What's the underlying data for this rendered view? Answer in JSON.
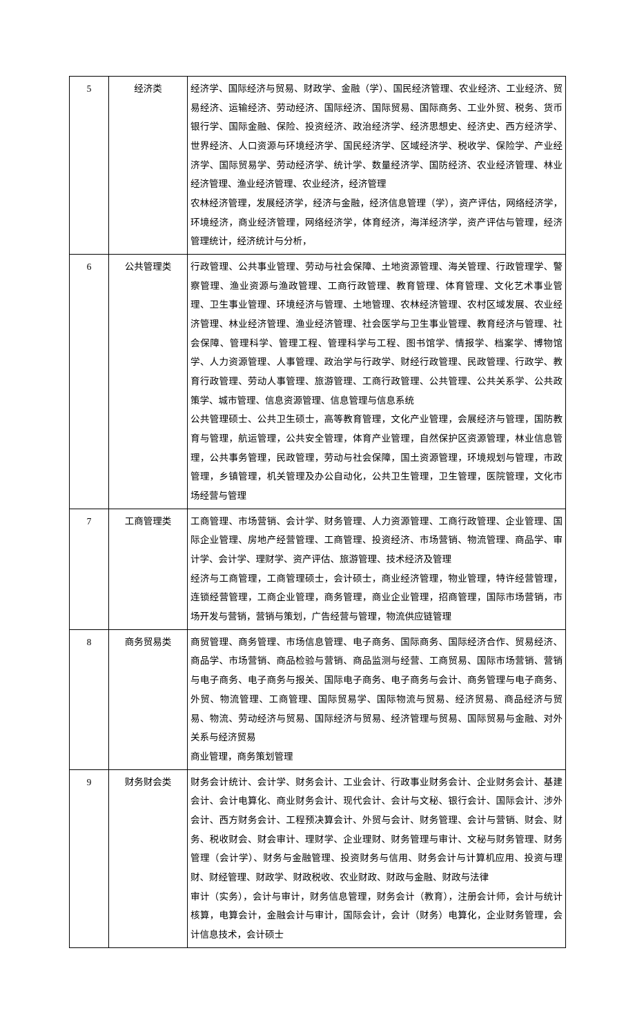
{
  "table": {
    "rows": [
      {
        "num": "5",
        "category": "经济类",
        "description": "经济学、国际经济与贸易、财政学、金融（学）、国民经济管理、农业经济、工业经济、贸易经济、运输经济、劳动经济、国际经济、国际贸易、国际商务、工业外贸、税务、货币银行学、国际金融、保险、投资经济、政治经济学、经济思想史、经济史、西方经济学、世界经济、人口资源与环境经济学、国民经济学、区域经济学、税收学、保险学、产业经济学、国际贸易学、劳动经济学、统计学、数量经济学、国防经济、农业经济管理、林业经济管理、渔业经济管理、农业经济，经济管理\n农林经济管理，发展经济学，经济与金融，经济信息管理（学），资产评估，网络经济学，环境经济，商业经济管理，网络经济学，体育经济，海洋经济学，资产评估与管理，经济管理统计，经济统计与分析，"
      },
      {
        "num": "6",
        "category": "公共管理类",
        "description": "行政管理、公共事业管理、劳动与社会保障、土地资源管理、海关管理、行政管理学、警察管理、渔业资源与渔政管理、工商行政管理、教育管理、体育管理、文化艺术事业管理、卫生事业管理、环境经济与管理、土地管理、农林经济管理、农村区域发展、农业经济管理、林业经济管理、渔业经济管理、社会医学与卫生事业管理、教育经济与管理、社会保障、管理科学、管理工程、管理科学与工程、图书馆学、情报学、档案学、博物馆学、人力资源管理、人事管理、政治学与行政学、财经行政管理、民政管理、行政学、教育行政管理、劳动人事管理、旅游管理、工商行政管理、公共管理、公共关系学、公共政策学、城市管理、信息资源管理、信息管理与信息系统\n公共管理硕士、公共卫生硕士，高等教育管理，文化产业管理，会展经济与管理，国防教育与管理，航运管理，公共安全管理，体育产业管理，自然保护区资源管理，林业信息管理，公共事务管理，民政管理，劳动与社会保障，国土资源管理，环境规划与管理，市政管理，乡镇管理，机关管理及办公自动化，公共卫生管理，卫生管理，医院管理，文化市场经营与管理"
      },
      {
        "num": "7",
        "category": "工商管理类",
        "description": "工商管理、市场营销、会计学、财务管理、人力资源管理、工商行政管理、企业管理、国际企业管理、房地产经营管理、工商管理、投资经济、市场营销、物流管理、商品学、审计学、会计学、理财学、资产评估、旅游管理、技术经济及管理\n经济与工商管理，工商管理硕士，会计硕士，商业经济管理，物业管理，特许经营管理，连锁经营管理，工商企业管理，商务管理，商业企业管理，招商管理，国际市场营销，市场开发与营销，营销与策划，广告经营与管理，物流供应链管理"
      },
      {
        "num": "8",
        "category": "商务贸易类",
        "description": "商贸管理、商务管理、市场信息管理、电子商务、国际商务、国际经济合作、贸易经济、商品学、市场营销、商品检验与营销、商品监测与经营、工商贸易、国际市场营销、营销与电子商务、电子商务与报关、国际电子商务、电子商务与会计、商务管理与电子商务、外贸、物流管理、工商管理、国际贸易学、国际物流与贸易、经济贸易、商品经济与贸易、物流、劳动经济与贸易、国际经济与贸易、经济管理与贸易、国际贸易与金融、对外关系与经济贸易\n商业管理，商务策划管理"
      },
      {
        "num": "9",
        "category": "财务财会类",
        "description": "财务会计统计、会计学、财务会计、工业会计、行政事业财务会计、企业财务会计、基建会计、会计电算化、商业财务会计、现代会计、会计与文秘、银行会计、国际会计、涉外会计、西方财务会计、工程预决算会计、外贸与会计、财务管理、会计与营销、财会、财务、税收财会、财会审计、理财学、企业理财、财务管理与审计、文秘与财务管理、财务管理（会计学）、财务与金融管理、投资财务与信用、财务会计与计算机应用、投资与理财、财经管理、财政学、财政税收、农业财政、财政与金融、财政与法律\n审计（实务），会计与审计，财务信息管理，财务会计（教育），注册会计师，会计与统计核算，电算会计，金融会计与审计，国际会计，会计（财务）电算化，企业财务管理，会计信息技术，会计硕士"
      }
    ]
  }
}
